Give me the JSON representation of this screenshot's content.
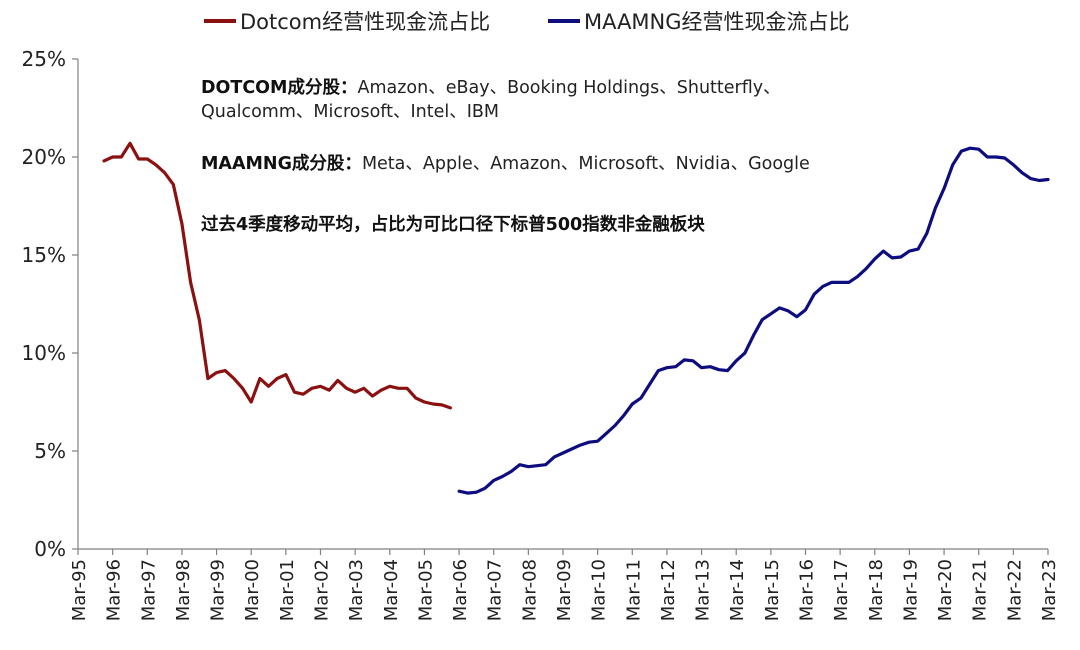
{
  "legend": {
    "dotcom": "Dotcom经营性现金流占比",
    "maamng": "MAAMNG经营性现金流占比"
  },
  "annotations": {
    "dotcom_label": "DOTCOM成分股：",
    "dotcom_members_line1": "Amazon、eBay、Booking Holdings、Shutterfly、",
    "dotcom_members_line2": "Qualcomm、Microsoft、Intel、IBM",
    "maamng_label": "MAAMNG成分股：",
    "maamng_members": "Meta、Apple、Amazon、Microsoft、Nvidia、Google",
    "method_note": "过去4季度移动平均，占比为可比口径下标普500指数非金融板块"
  },
  "colors": {
    "dotcom": "#8B1010",
    "maamng": "#0D0D80",
    "axis": "#808080"
  },
  "chart_data": {
    "type": "line",
    "title": "",
    "xlabel": "",
    "ylabel": "",
    "ylim": [
      0,
      25
    ],
    "yticks": [
      0,
      5,
      10,
      15,
      20,
      25
    ],
    "ytick_labels": [
      "0%",
      "5%",
      "10%",
      "15%",
      "20%",
      "25%"
    ],
    "xlim": [
      1995.0,
      2023.0
    ],
    "xtick_labels": [
      "Mar-95",
      "Mar-96",
      "Mar-97",
      "Mar-98",
      "Mar-99",
      "Mar-00",
      "Mar-01",
      "Mar-02",
      "Mar-03",
      "Mar-04",
      "Mar-05",
      "Mar-06",
      "Mar-07",
      "Mar-08",
      "Mar-09",
      "Mar-10",
      "Mar-11",
      "Mar-12",
      "Mar-13",
      "Mar-14",
      "Mar-15",
      "Mar-16",
      "Mar-17",
      "Mar-18",
      "Mar-19",
      "Mar-20",
      "Mar-21",
      "Mar-22",
      "Mar-23"
    ],
    "series": [
      {
        "name": "Dotcom经营性现金流占比",
        "color": "#8B1010",
        "x": [
          1995.75,
          1996.0,
          1996.25,
          1996.5,
          1996.75,
          1997.0,
          1997.25,
          1997.5,
          1997.75,
          1998.0,
          1998.25,
          1998.5,
          1998.75,
          1999.0,
          1999.25,
          1999.5,
          1999.75,
          2000.0,
          2000.25,
          2000.5,
          2000.75,
          2001.0,
          2001.25,
          2001.5,
          2001.75,
          2002.0,
          2002.25,
          2002.5,
          2002.75,
          2003.0,
          2003.25,
          2003.5,
          2003.75,
          2004.0,
          2004.25,
          2004.5,
          2004.75,
          2005.0,
          2005.25,
          2005.5,
          2005.75
        ],
        "values": [
          19.8,
          20.0,
          20.0,
          20.7,
          19.9,
          19.9,
          19.6,
          19.2,
          18.6,
          16.6,
          13.6,
          11.7,
          8.7,
          9.0,
          9.1,
          8.7,
          8.2,
          7.5,
          8.7,
          8.3,
          8.7,
          8.9,
          8.0,
          7.9,
          8.2,
          8.3,
          8.1,
          8.6,
          8.2,
          8.0,
          8.2,
          7.8,
          8.1,
          8.3,
          8.2,
          8.2,
          7.7,
          7.5,
          7.4,
          7.35,
          7.2
        ]
      },
      {
        "name": "MAAMNG经营性现金流占比",
        "color": "#0D0D80",
        "x": [
          2006.0,
          2006.25,
          2006.5,
          2006.75,
          2007.0,
          2007.25,
          2007.5,
          2007.75,
          2008.0,
          2008.25,
          2008.5,
          2008.75,
          2009.0,
          2009.25,
          2009.5,
          2009.75,
          2010.0,
          2010.25,
          2010.5,
          2010.75,
          2011.0,
          2011.25,
          2011.5,
          2011.75,
          2012.0,
          2012.25,
          2012.5,
          2012.75,
          2013.0,
          2013.25,
          2013.5,
          2013.75,
          2014.0,
          2014.25,
          2014.5,
          2014.75,
          2015.0,
          2015.25,
          2015.5,
          2015.75,
          2016.0,
          2016.25,
          2016.5,
          2016.75,
          2017.0,
          2017.25,
          2017.5,
          2017.75,
          2018.0,
          2018.25,
          2018.5,
          2018.75,
          2019.0,
          2019.25,
          2019.5,
          2019.75,
          2020.0,
          2020.25,
          2020.5,
          2020.75,
          2021.0,
          2021.25,
          2021.5,
          2021.75,
          2022.0,
          2022.25,
          2022.5,
          2022.75,
          2023.0
        ],
        "values": [
          2.95,
          2.85,
          2.9,
          3.1,
          3.5,
          3.7,
          3.95,
          4.3,
          4.2,
          4.25,
          4.3,
          4.7,
          4.9,
          5.1,
          5.3,
          5.45,
          5.5,
          5.9,
          6.3,
          6.8,
          7.4,
          7.7,
          8.4,
          9.1,
          9.25,
          9.3,
          9.65,
          9.6,
          9.25,
          9.3,
          9.15,
          9.1,
          9.6,
          10.0,
          10.9,
          11.7,
          12.0,
          12.3,
          12.15,
          11.85,
          12.2,
          13.0,
          13.4,
          13.6,
          13.6,
          13.6,
          13.9,
          14.3,
          14.8,
          15.2,
          14.85,
          14.9,
          15.2,
          15.3,
          16.1,
          17.4,
          18.4,
          19.6,
          20.3,
          20.45,
          20.4,
          20.0,
          20.0,
          19.95,
          19.6,
          19.2,
          18.9,
          18.8,
          18.85
        ]
      }
    ],
    "grid": false,
    "legend_position": "top"
  }
}
